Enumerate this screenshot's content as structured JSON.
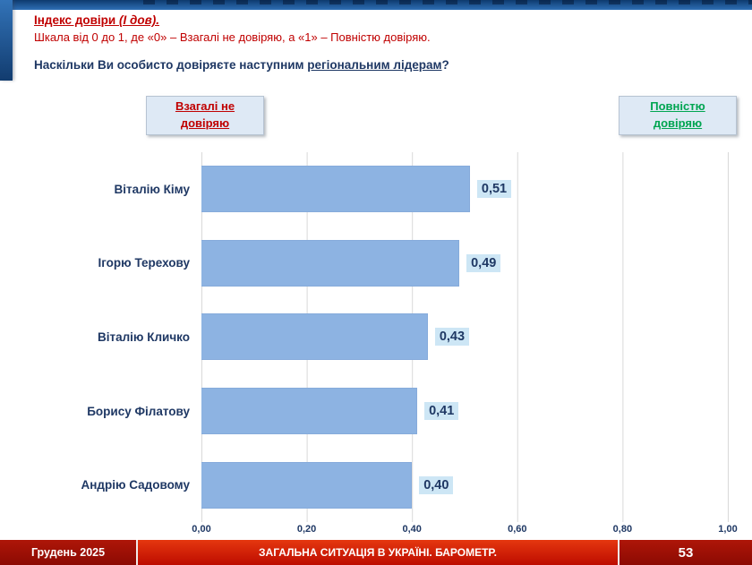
{
  "slide": {
    "title": "Індекс довіри ",
    "title_italic": "(І дов).",
    "subtitle": "Шкала від 0 до 1, де «0» – Взагалі не довіряю, а «1» – Повністю довіряю.",
    "question_prefix": "Наскільки Ви особисто довіряєте наступним ",
    "question_underline": "регіональним лідерам",
    "question_suffix": "?"
  },
  "scale_labels": {
    "left": "Взагалі не довіряю",
    "right": "Повністю довіряю"
  },
  "chart_data": {
    "type": "bar",
    "orientation": "horizontal",
    "title": "",
    "categories": [
      "Віталію Кіму",
      "Ігорю Терехову",
      "Віталію Кличко",
      "Борису Філатову",
      "Андрію Садовому"
    ],
    "values": [
      0.51,
      0.49,
      0.43,
      0.41,
      0.4
    ],
    "value_labels": [
      "0,51",
      "0,49",
      "0,43",
      "0,41",
      "0,40"
    ],
    "xlim": [
      0,
      1
    ],
    "x_ticks": [
      "0,00",
      "0,20",
      "0,40",
      "0,60",
      "0,80",
      "1,00"
    ],
    "grid": true,
    "legend_position": "none"
  },
  "footer": {
    "date": "Грудень 2025",
    "title": "ЗАГАЛЬНА СИТУАЦІЯ В УКРАЇНІ. БАРОМЕТР.",
    "page": "53"
  },
  "colors": {
    "navy": "#1F3864",
    "red": "#C00000",
    "green": "#00A551",
    "bar": "#8DB3E2",
    "chip": "#CDE6F5",
    "grid": "#D9D9D9",
    "box-bg": "#DEE9F5"
  }
}
